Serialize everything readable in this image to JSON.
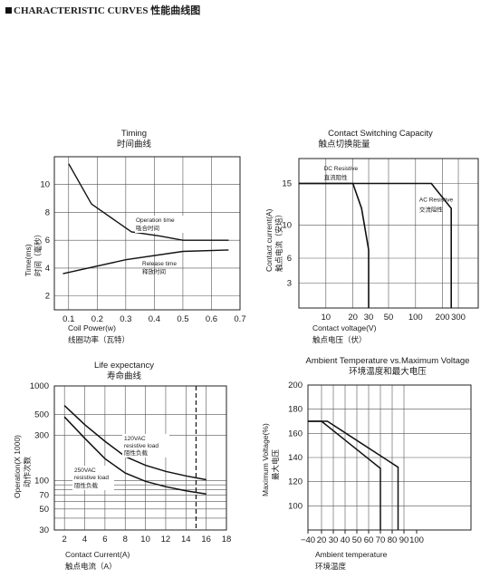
{
  "header": {
    "title_en": "CHARACTERISTIC CURVES",
    "title_cn": "性能曲线图"
  },
  "chart_data": [
    {
      "type": "line",
      "title": "Timing",
      "subtitle": "时间曲线",
      "xlabel": "Coil Power(w)",
      "xlabel_cn": "线圈功率（瓦特）",
      "ylabel": "Time(ms)",
      "ylabel_cn": "时间（毫秒）",
      "xlim": [
        0.05,
        0.7
      ],
      "ylim": [
        1,
        12
      ],
      "x_ticks": [
        0.1,
        0.2,
        0.3,
        0.4,
        0.5,
        0.6,
        0.7
      ],
      "y_ticks": [
        2,
        4,
        6,
        8,
        10
      ],
      "x_grid": [
        0.1,
        0.2,
        0.3,
        0.4,
        0.5,
        0.6,
        0.7
      ],
      "y_grid": [
        2,
        4,
        6,
        8,
        10
      ],
      "series": [
        {
          "name": "Operation time",
          "name_cn": "吸合时间",
          "x": [
            0.1,
            0.18,
            0.32,
            0.42,
            0.5,
            0.66
          ],
          "y": [
            11.5,
            8.6,
            6.6,
            6.3,
            6.0,
            6.0
          ]
        },
        {
          "name": "Release time",
          "name_cn": "释放时间",
          "x": [
            0.08,
            0.3,
            0.5,
            0.66
          ],
          "y": [
            3.6,
            4.6,
            5.2,
            5.3
          ]
        }
      ]
    },
    {
      "type": "line",
      "title": "Contact Switching Capacity",
      "subtitle": "触点切换能量",
      "xlabel": "Contact voltage(V)",
      "xlabel_cn": "触点电压（伏）",
      "ylabel": "Contact current(A)",
      "ylabel_cn": "触点电流（安培）",
      "x_scale": "log",
      "xlim": [
        5,
        500
      ],
      "ylim": [
        0,
        18
      ],
      "x_ticks": [
        10,
        20,
        30,
        50,
        100,
        200,
        300
      ],
      "y_ticks": [
        3,
        6,
        10,
        15
      ],
      "x_grid": [
        10,
        20,
        30,
        50,
        100,
        200,
        300
      ],
      "y_grid": [
        3,
        6,
        10,
        15
      ],
      "series": [
        {
          "name": "DC Resistive",
          "name_cn": "直流阻性",
          "x": [
            5,
            20,
            25,
            30,
            30
          ],
          "y": [
            15,
            15,
            12,
            7,
            0
          ]
        },
        {
          "name": "AC Resistive",
          "name_cn": "交流阻性",
          "x": [
            5,
            150,
            250,
            250
          ],
          "y": [
            15,
            15,
            12,
            0
          ]
        }
      ]
    },
    {
      "type": "line",
      "title": "Life expectancy",
      "subtitle": "寿命曲线",
      "xlabel": "Contact Current(A)",
      "xlabel_cn": "触点电流（A）",
      "ylabel": "Operation(X 1000)",
      "ylabel_cn": "动作次数",
      "y_scale": "log",
      "xlim": [
        1,
        18
      ],
      "ylim": [
        30,
        1000
      ],
      "x_ticks": [
        2,
        4,
        6,
        8,
        10,
        12,
        14,
        16,
        18
      ],
      "y_ticks": [
        1000,
        500,
        300,
        100,
        70,
        50,
        30
      ],
      "x_grid": [
        2,
        4,
        6,
        8,
        10,
        12,
        14,
        16
      ],
      "y_grid": [
        1000,
        500,
        300,
        100,
        70,
        50,
        30
      ],
      "y_minor_lines": [
        90,
        80,
        60,
        40
      ],
      "vline_dashed": 15,
      "series": [
        {
          "name": "120VAC resistive load",
          "name_cn": "阻性负载",
          "x": [
            2,
            4,
            6,
            8,
            10,
            12,
            14,
            16
          ],
          "y": [
            620,
            390,
            260,
            180,
            145,
            125,
            112,
            102
          ]
        },
        {
          "name": "250VAC resistive load",
          "name_cn": "阻性负载",
          "x": [
            2,
            4,
            6,
            8,
            10,
            12,
            14,
            16
          ],
          "y": [
            470,
            280,
            170,
            120,
            98,
            86,
            78,
            72
          ]
        }
      ]
    },
    {
      "type": "line",
      "title": "Ambient Temperature vs.Maximum Voltage",
      "subtitle": "环境温度和最大电压",
      "xlabel": "Ambient temperature",
      "xlabel_cn": "环境温度",
      "ylabel": "Maximum Voltage(%)",
      "ylabel_cn": "最大电压",
      "xlim": [
        -40,
        100
      ],
      "ylim": [
        80,
        200
      ],
      "x_ticks": [
        -40,
        20,
        30,
        40,
        50,
        60,
        70,
        80,
        90,
        100
      ],
      "x_tick_labels": [
        "−40",
        "20",
        "30",
        "40",
        "50",
        "60",
        "70",
        "80",
        "90",
        "100"
      ],
      "y_ticks": [
        100,
        120,
        140,
        160,
        180,
        200
      ],
      "y_grid": [
        100,
        120,
        140,
        160,
        180,
        200
      ],
      "series": [
        {
          "x": [
            -40,
            20,
            70,
            70
          ],
          "y": [
            170,
            170,
            131,
            80
          ]
        },
        {
          "x": [
            -40,
            25,
            85,
            85
          ],
          "y": [
            170,
            170,
            132,
            80
          ]
        }
      ]
    }
  ]
}
